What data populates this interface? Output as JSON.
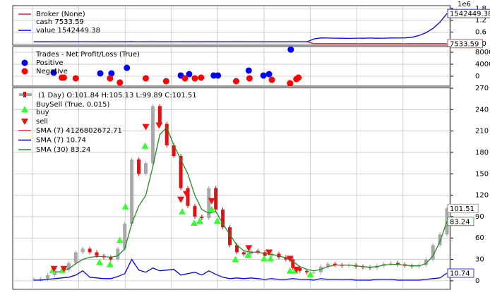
{
  "chart_data": [
    {
      "type": "line",
      "title": "Broker (None)",
      "offset_label": "1e6",
      "xlim": [
        -3,
        59.5
      ],
      "ylim": [
        -72000,
        1944000
      ],
      "yticks": [
        {
          "value": 1800000,
          "label": "1.8"
        },
        {
          "value": 1200000,
          "label": "1.2"
        },
        {
          "value": 600000,
          "label": "0.6"
        },
        {
          "value": 0,
          "label": "0.0"
        }
      ],
      "grid": true,
      "series": [
        {
          "name": "cash 7533.59",
          "color": "#d62728",
          "values": [
            100000,
            100000,
            101000,
            99000,
            103000,
            98000,
            104000,
            106000,
            97000,
            99000,
            100000,
            98000,
            102000,
            99000,
            108000,
            95000,
            97000,
            103000,
            96000,
            99000,
            94000,
            102000,
            98000,
            105000,
            97000,
            101000,
            99000,
            96000,
            98000,
            100000,
            99000,
            97000,
            98000,
            96000,
            99000,
            97000,
            98000,
            100000,
            102000,
            99000,
            7533.59,
            7533.59,
            7533.59,
            7533.59,
            7533.59,
            7533.59,
            7533.59,
            7533.59,
            7533.59,
            7533.59,
            7533.59,
            7533.59,
            7533.59,
            7533.59,
            7533.59,
            7533.59,
            7533.59,
            7533.59,
            7533.59,
            7533.59
          ]
        },
        {
          "name": "value 1542449.38",
          "color": "#0000ee",
          "values": [
            100000,
            100000,
            101000,
            99000,
            103000,
            98000,
            104000,
            106000,
            97000,
            99000,
            100000,
            98000,
            102000,
            99000,
            108000,
            95000,
            97000,
            103000,
            96000,
            99000,
            94000,
            102000,
            98000,
            105000,
            97000,
            101000,
            99000,
            96000,
            98000,
            100000,
            99000,
            97000,
            98000,
            96000,
            99000,
            97000,
            98000,
            100000,
            102000,
            99000,
            250000,
            300000,
            290000,
            285000,
            280000,
            275000,
            285000,
            280000,
            290000,
            280000,
            285000,
            295000,
            290000,
            300000,
            330000,
            420000,
            560000,
            780000,
            1100000,
            1542449.38
          ]
        }
      ]
    },
    {
      "type": "scatter",
      "title": "Trades - Net Profit/Loss (True)",
      "xlim": [
        -3,
        59.5
      ],
      "ylim": [
        -3300,
        9900
      ],
      "yticks": [
        8000,
        4000,
        0
      ],
      "grid": true,
      "series": [
        {
          "name": "Positive",
          "color": "#0000ff",
          "x": [
            2.85,
            9.5,
            11.1,
            13.3,
            21,
            22.2,
            25.7,
            26.3,
            30.7,
            32.8,
            33.6,
            36.7
          ],
          "values": [
            1200,
            950,
            950,
            2800,
            250,
            700,
            250,
            250,
            1900,
            250,
            700,
            8900
          ]
        },
        {
          "name": "Negative",
          "color": "#ff0000",
          "x": [
            4,
            4.3,
            6,
            10.9,
            12.3,
            16,
            18.9,
            21.6,
            23,
            23.9,
            28.9,
            30.8,
            34,
            36.6,
            37.5,
            37.8
          ],
          "values": [
            -470,
            -470,
            -700,
            -700,
            -2100,
            -700,
            -1650,
            -700,
            -700,
            -470,
            -1650,
            -700,
            -1200,
            -2350,
            -950,
            -470
          ]
        }
      ]
    },
    {
      "type": "candlestick",
      "ohlc_label": "(1 Day) O:101.84 H:105.13 L:99.89 C:101.51",
      "xlim": [
        -3,
        59.5
      ],
      "ylim": [
        -12,
        271
      ],
      "yticks": [
        270,
        240,
        210,
        180,
        150,
        120,
        90,
        60,
        30,
        0
      ],
      "grid": true,
      "close": [
        2,
        3,
        8,
        14,
        15,
        25,
        40,
        45,
        40,
        35,
        33,
        30,
        45,
        80,
        170,
        150,
        165,
        245,
        220,
        190,
        175,
        130,
        105,
        90,
        88,
        130,
        100,
        75,
        50,
        40,
        37,
        42,
        40,
        35,
        38,
        33,
        30,
        18,
        14,
        12,
        12,
        20,
        24,
        22,
        21,
        22,
        20,
        19,
        18,
        21,
        24,
        25,
        23,
        21,
        20,
        22,
        30,
        50,
        65,
        101.51
      ],
      "buysell_label": "BuySell (True, 0.015)",
      "buy": {
        "name": "buy",
        "color": "#33ff33",
        "x": [
          2.7,
          4.1,
          9.4,
          10.9,
          12.3,
          13.1,
          15.9,
          21.2,
          22.9,
          23.7,
          25.4,
          26.2,
          28.8,
          30.6,
          32.9,
          33.8,
          36.6,
          37.3,
          39.5
        ],
        "values": [
          15,
          15,
          26,
          23,
          57,
          104,
          189,
          97,
          81,
          84,
          100,
          84,
          30,
          36,
          31,
          31,
          14,
          14,
          9
        ]
      },
      "sell": {
        "name": "sell",
        "color": "#ee1111",
        "x": [
          2.9,
          4.3,
          16,
          17.9,
          21,
          21.8,
          25.4,
          30.7,
          33.6,
          36.6,
          37.5
        ],
        "values": [
          17,
          17,
          216,
          218,
          114,
          122,
          112,
          46,
          40,
          31,
          16
        ]
      },
      "series": [
        {
          "name": "SMA (7) 4126802672.71",
          "color": "#e8384f"
        },
        {
          "name": "SMA (7) 10.74",
          "color": "#0000ee",
          "values": [
            1,
            1,
            2,
            3,
            4,
            5,
            8,
            14,
            5,
            4,
            3,
            3,
            6,
            10,
            30,
            15,
            12,
            18,
            14,
            15,
            16,
            8,
            10,
            12,
            8,
            14,
            9,
            5,
            3,
            4,
            3,
            4,
            3,
            2,
            3,
            2,
            2,
            3,
            2,
            2,
            1,
            3,
            2,
            2,
            2,
            2,
            1,
            1,
            1,
            2,
            2,
            2,
            1,
            1,
            1,
            1,
            2,
            3,
            4,
            10.74
          ]
        },
        {
          "name": "SMA (30) 83.24",
          "color": "#228b22",
          "values": [
            null,
            null,
            null,
            12,
            13,
            17,
            24,
            30,
            33,
            34,
            34,
            33,
            35,
            45,
            80,
            105,
            120,
            160,
            205,
            215,
            190,
            170,
            150,
            120,
            100,
            95,
            97,
            80,
            65,
            50,
            42,
            40,
            40,
            38,
            37,
            35,
            32,
            27,
            20,
            16,
            14,
            16,
            20,
            22,
            22,
            22,
            21,
            20,
            19,
            20,
            22,
            23,
            23,
            22,
            21,
            21,
            24,
            35,
            55,
            83.24
          ]
        }
      ]
    }
  ]
}
